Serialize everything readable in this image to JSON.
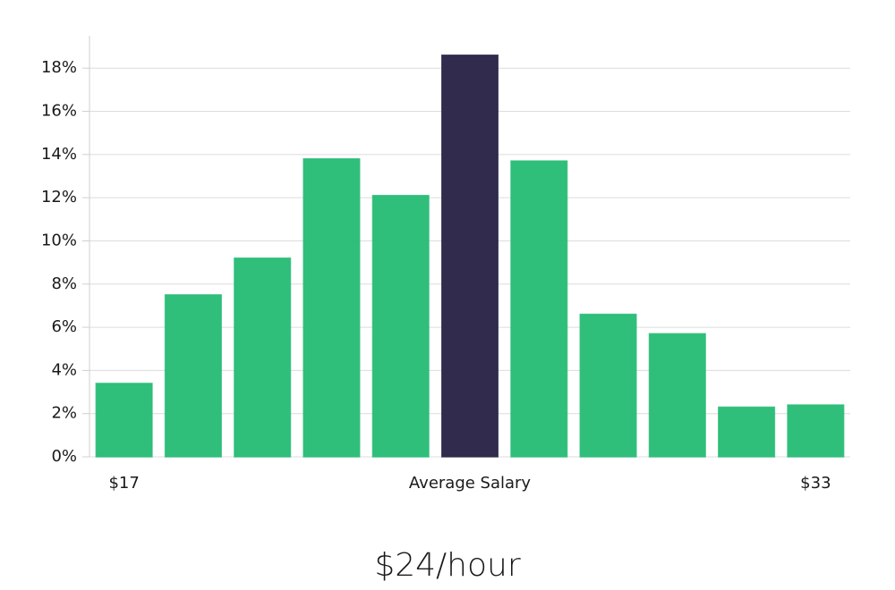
{
  "chart_data": {
    "type": "bar",
    "title": "$24/hour",
    "categories": [
      "$17",
      null,
      null,
      null,
      null,
      "Average Salary",
      null,
      null,
      null,
      null,
      "$33"
    ],
    "values": [
      3.4,
      7.5,
      9.2,
      13.8,
      12.1,
      18.6,
      13.7,
      6.6,
      5.7,
      2.3,
      2.4
    ],
    "colors": [
      "#29bd77",
      "#29bd77",
      "#29bd77",
      "#29bd77",
      "#29bd77",
      "#2a2547",
      "#29bd77",
      "#29bd77",
      "#29bd77",
      "#29bd77",
      "#29bd77"
    ],
    "ylim": [
      0,
      19.5
    ],
    "yticks": [
      {
        "value": 0,
        "label": "0%"
      },
      {
        "value": 2,
        "label": "2%"
      },
      {
        "value": 4,
        "label": "4%"
      },
      {
        "value": 6,
        "label": "6%"
      },
      {
        "value": 8,
        "label": "8%"
      },
      {
        "value": 10,
        "label": "10%"
      },
      {
        "value": 12,
        "label": "12%"
      },
      {
        "value": 14,
        "label": "14%"
      },
      {
        "value": 16,
        "label": "16%"
      },
      {
        "value": 18,
        "label": "18%"
      }
    ],
    "grid": true
  }
}
